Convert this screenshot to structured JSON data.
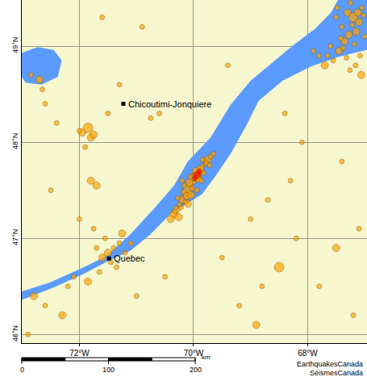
{
  "chart_data": {
    "type": "scatter",
    "xlim": [
      -73.01,
      -66.96
    ],
    "ylim": [
      45.91,
      49.48
    ],
    "xticks": [
      {
        "value": -72,
        "label": "72°W"
      },
      {
        "value": -70,
        "label": "70°W"
      },
      {
        "value": -68,
        "label": "68°W"
      }
    ],
    "yticks": [
      {
        "value": 46,
        "label": "46°N"
      },
      {
        "value": 47,
        "label": "47°N"
      },
      {
        "value": 48,
        "label": "48°N"
      },
      {
        "value": 49,
        "label": "49°N"
      }
    ],
    "grid": true,
    "marker": "circle",
    "water": [
      {
        "color": "#5b9bff",
        "x": [
          -73.05,
          -72.52,
          -71.96,
          -71.54,
          -71.11,
          -70.69,
          -70.34,
          -70.1,
          -69.7,
          -69.35,
          -69.0,
          -68.65,
          -68.23,
          -67.87,
          -67.59,
          -67.45,
          -66.9,
          -66.9,
          -67.45,
          -67.94,
          -68.44,
          -68.86,
          -69.07,
          -69.35,
          -69.59,
          -69.85,
          -70.41,
          -70.76,
          -71.11,
          -71.54,
          -71.96,
          -72.45,
          -73.05
        ],
        "y": [
          46.44,
          46.54,
          46.69,
          46.81,
          47.04,
          47.31,
          47.55,
          47.8,
          48.05,
          48.39,
          48.64,
          48.81,
          49.02,
          49.18,
          49.35,
          49.5,
          49.5,
          48.97,
          48.89,
          48.79,
          48.64,
          48.43,
          48.18,
          47.88,
          47.67,
          47.46,
          47.25,
          47.04,
          46.87,
          46.75,
          46.62,
          46.49,
          46.35
        ]
      },
      {
        "color": "#5b9bff",
        "x": [
          -73.05,
          -73.01,
          -72.73,
          -72.45,
          -72.31,
          -72.38,
          -72.66,
          -72.94,
          -73.05
        ],
        "y": [
          48.81,
          48.93,
          48.99,
          48.96,
          48.85,
          48.68,
          48.6,
          48.62,
          48.71
        ]
      }
    ],
    "series": [
      {
        "color": "#ffa500",
        "x": [
          -70.3,
          -70.25,
          -70.2,
          -70.15,
          -70.1,
          -70.05,
          -70.0,
          -69.95,
          -69.9,
          -69.85,
          -69.8,
          -69.75,
          -69.7,
          -69.65,
          -70.35,
          -70.28,
          -70.18,
          -70.08,
          -69.98,
          -69.88,
          -69.78,
          -70.22,
          -70.12,
          -70.02,
          -69.92,
          -69.82,
          -70.4,
          -70.32,
          -70.14,
          -69.96,
          -70.06,
          -69.86,
          -70.26,
          -70.16,
          -69.72,
          -69.94,
          -70.04,
          -69.84,
          -70.2,
          -70.1,
          -67.2,
          -67.1,
          -67.05,
          -67.3,
          -67.4,
          -67.15,
          -67.25,
          -67.0,
          -67.35,
          -67.5,
          -67.6,
          -67.45,
          -67.08,
          -67.18,
          -67.28,
          -67.38,
          -67.12,
          -67.22,
          -67.02,
          -67.55,
          -67.7,
          -67.65,
          -67.32,
          -67.42,
          -67.48,
          -67.06,
          -67.16,
          -67.26,
          -67.8,
          -67.9,
          -71.5,
          -71.4,
          -71.3,
          -71.6,
          -71.45,
          -71.35,
          -71.2,
          -71.7,
          -71.55,
          -71.25,
          -71.65,
          -71.1,
          -71.85,
          -72.1,
          -71.75,
          -71.95,
          -71.85,
          -71.8,
          -71.9,
          -72.0,
          -71.75,
          -71.7,
          -72.7,
          -72.65,
          -72.6,
          -71.5,
          -72.4,
          -71.8,
          -70.75,
          -70.6,
          -72.8,
          -72.6,
          -72.9,
          -72.3,
          -72.2,
          -71.0,
          -70.5,
          -69.5,
          -69.2,
          -68.9,
          -68.5,
          -68.2,
          -67.8,
          -67.5,
          -67.2,
          -68.7,
          -69.0,
          -68.3,
          -67.1,
          -72.5,
          -72.85,
          -71.3,
          -70.9,
          -69.4,
          -68.4,
          -68.1,
          -67.4,
          -72.0,
          -71.6,
          -68.8
        ],
        "y": [
          47.3,
          47.35,
          47.4,
          47.45,
          47.5,
          47.55,
          47.6,
          47.65,
          47.7,
          47.75,
          47.8,
          47.82,
          47.85,
          47.88,
          47.25,
          47.42,
          47.48,
          47.58,
          47.66,
          47.72,
          47.78,
          47.32,
          47.44,
          47.52,
          47.62,
          47.68,
          47.2,
          47.28,
          47.38,
          47.7,
          47.64,
          47.6,
          47.22,
          47.55,
          47.76,
          47.5,
          47.45,
          47.82,
          47.6,
          47.36,
          49.3,
          49.25,
          49.4,
          49.35,
          49.2,
          49.15,
          49.45,
          49.1,
          49.05,
          49.3,
          49.0,
          48.95,
          48.9,
          49.02,
          49.12,
          48.98,
          49.35,
          49.22,
          49.32,
          48.85,
          48.8,
          48.9,
          48.88,
          49.08,
          49.4,
          48.7,
          48.8,
          48.75,
          48.9,
          48.95,
          46.85,
          46.9,
          46.95,
          46.8,
          46.75,
          46.7,
          46.85,
          46.9,
          47.0,
          47.05,
          46.65,
          46.95,
          46.55,
          46.6,
          47.1,
          48.1,
          48.15,
          48.05,
          47.95,
          48.12,
          48.08,
          47.55,
          48.65,
          48.55,
          48.4,
          48.3,
          48.2,
          47.6,
          48.25,
          48.3,
          46.4,
          46.3,
          46.0,
          46.2,
          46.5,
          46.4,
          46.6,
          46.8,
          46.3,
          46.1,
          46.7,
          47.0,
          46.5,
          46.9,
          46.2,
          47.4,
          47.2,
          47.6,
          47.1,
          47.5,
          48.7,
          48.6,
          49.2,
          48.8,
          48.3,
          48.0,
          47.8,
          47.2,
          49.3,
          46.5
        ],
        "size": [
          2,
          1,
          2,
          1,
          3,
          1,
          2,
          3,
          2,
          1,
          1,
          2,
          1,
          1,
          2,
          1,
          1,
          2,
          1,
          2,
          1,
          1,
          2,
          1,
          2,
          1,
          2,
          1,
          1,
          2,
          1,
          1,
          2,
          1,
          1,
          1,
          2,
          1,
          1,
          2,
          3,
          2,
          1,
          2,
          1,
          2,
          1,
          1,
          2,
          1,
          1,
          2,
          1,
          1,
          2,
          1,
          2,
          1,
          1,
          1,
          2,
          1,
          1,
          1,
          1,
          2,
          1,
          1,
          1,
          1,
          2,
          1,
          1,
          2,
          1,
          1,
          1,
          1,
          1,
          2,
          1,
          1,
          2,
          1,
          1,
          2,
          3,
          2,
          1,
          1,
          2,
          2,
          2,
          1,
          1,
          1,
          1,
          2,
          1,
          1,
          2,
          1,
          1,
          2,
          1,
          1,
          1,
          1,
          1,
          2,
          3,
          1,
          1,
          2,
          1,
          1,
          1,
          1,
          1,
          1,
          1,
          1,
          1,
          1,
          1,
          1,
          1,
          1,
          1,
          1
        ]
      },
      {
        "color": "#ff0000",
        "x": [
          -69.94,
          -69.9,
          -69.98
        ],
        "y": [
          47.66,
          47.7,
          47.62
        ],
        "size": [
          2,
          1,
          1
        ]
      }
    ],
    "places": [
      {
        "text": "Chicoutimi-Jonquiere",
        "x": -71.23,
        "y": 48.4
      },
      {
        "text": "Quebec",
        "x": -71.48,
        "y": 46.79
      }
    ],
    "scale_bar": {
      "ticks": [
        0,
        100,
        200
      ],
      "unit": "km"
    },
    "credits": [
      "EarthquakesCanada",
      "SéismesCanada"
    ]
  }
}
